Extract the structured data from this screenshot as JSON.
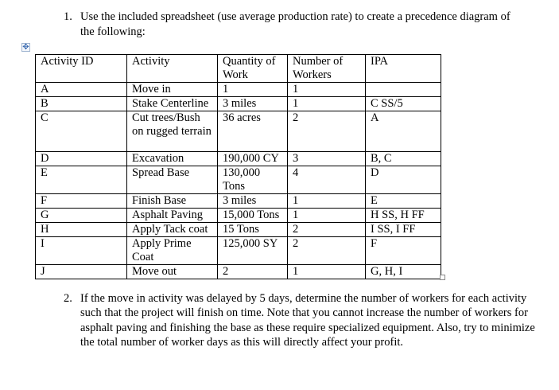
{
  "question1": {
    "number": "1.",
    "text": "Use the included spreadsheet (use average production rate) to create a precedence diagram of the following:"
  },
  "table": {
    "move_handle_icon": "four-way-arrow-move-icon",
    "resize_handle_icon": "square-resize-handle-icon",
    "headers": [
      "Activity ID",
      "Activity",
      "Quantity of Work",
      "Number of Workers",
      "IPA"
    ],
    "rows": [
      {
        "id": "A",
        "activity": "Move in",
        "quantity": "1",
        "workers": "1",
        "ipa": ""
      },
      {
        "id": "B",
        "activity": "Stake Centerline",
        "quantity": "3 miles",
        "workers": "1",
        "ipa": "C SS/5"
      },
      {
        "id": "C",
        "activity": "Cut trees/Bush on rugged terrain",
        "quantity": "36 acres",
        "workers": "2",
        "ipa": "A"
      },
      {
        "id": "D",
        "activity": "Excavation",
        "quantity": "190,000 CY",
        "workers": "3",
        "ipa": "B, C"
      },
      {
        "id": "E",
        "activity": "Spread Base",
        "quantity": "130,000 Tons",
        "workers": "4",
        "ipa": "D"
      },
      {
        "id": "F",
        "activity": "Finish Base",
        "quantity": "3 miles",
        "workers": "1",
        "ipa": "E"
      },
      {
        "id": "G",
        "activity": "Asphalt Paving",
        "quantity": "15,000 Tons",
        "workers": "1",
        "ipa": "H SS, H FF"
      },
      {
        "id": "H",
        "activity": "Apply Tack coat",
        "quantity": "15 Tons",
        "workers": "2",
        "ipa": "I SS, I FF"
      },
      {
        "id": "I",
        "activity": "Apply Prime Coat",
        "quantity": "125,000 SY",
        "workers": "2",
        "ipa": "F"
      },
      {
        "id": "J",
        "activity": "Move out",
        "quantity": "2",
        "workers": "1",
        "ipa": "G, H, I"
      }
    ]
  },
  "question2": {
    "number": "2.",
    "text": "If the move in activity was delayed by 5 days, determine the number of workers for each activity such that the project will finish on time. Note that you cannot increase the number of workers for asphalt paving and finishing the base as these require specialized equipment. Also, try to minimize  the total number of worker days as this will directly affect your profit."
  },
  "colors": {
    "text": "#000000",
    "background": "#ffffff",
    "move_handle_border": "#9fb4d0",
    "move_handle_glyph": "#3a6ab0",
    "resize_handle_border": "#8a8a8a"
  }
}
